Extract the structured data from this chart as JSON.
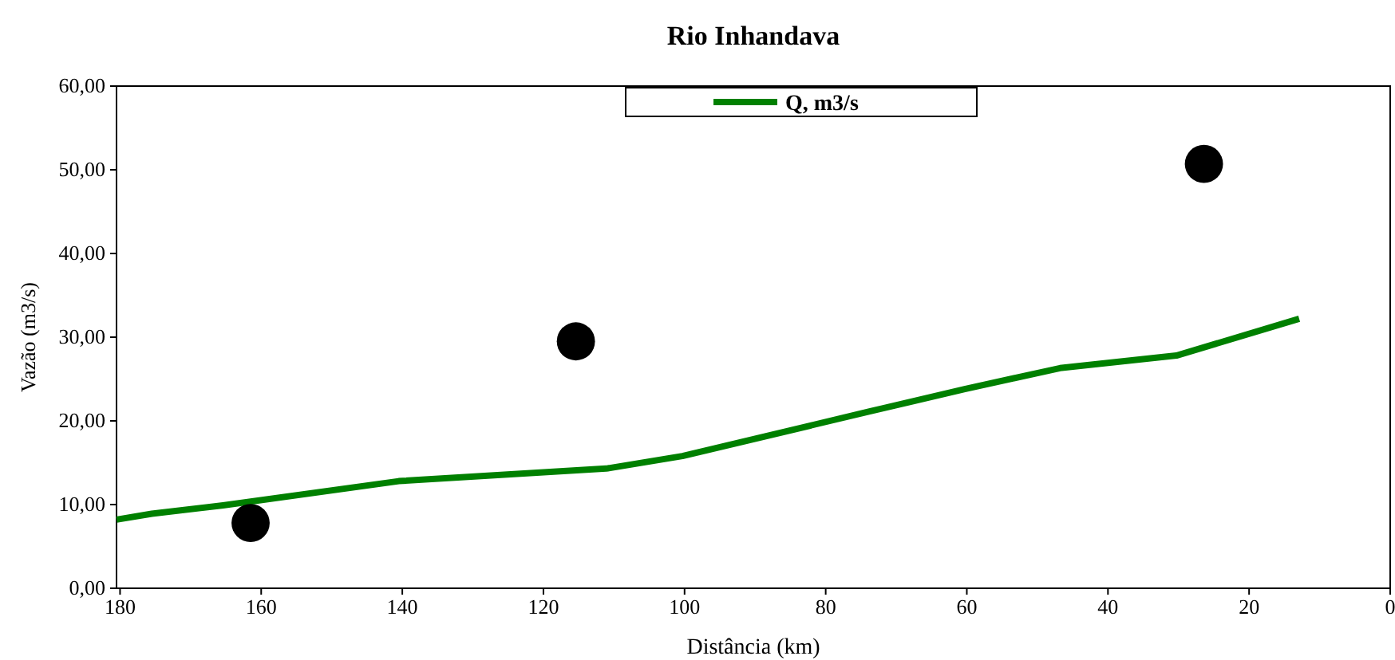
{
  "chart_data": {
    "type": "line",
    "title": "Rio Inhandava",
    "xlabel": "Distância (km)",
    "ylabel": "Vazão (m3/s)",
    "xlim": [
      180.5,
      0
    ],
    "xticks": [
      180,
      160,
      140,
      120,
      100,
      80,
      60,
      40,
      20,
      0
    ],
    "ylim": [
      0,
      60
    ],
    "yticks": [
      {
        "value": 0,
        "label": "0,00"
      },
      {
        "value": 10,
        "label": "10,00"
      },
      {
        "value": 20,
        "label": "20,00"
      },
      {
        "value": 30,
        "label": "30,00"
      },
      {
        "value": 40,
        "label": "40,00"
      },
      {
        "value": 50,
        "label": "50,00"
      },
      {
        "value": 60,
        "label": "60,00"
      }
    ],
    "grid": false,
    "legend": "top",
    "series": [
      {
        "name": "Q, m3/s",
        "type": "line",
        "color": "#008000",
        "marker": "none",
        "line_style": "solid",
        "x": [
          180.5,
          175.5,
          165.4,
          140.5,
          111.1,
          100.3,
          73.9,
          60.3,
          46.8,
          30.3,
          12.9
        ],
        "values": [
          8.2,
          8.9,
          9.9,
          12.8,
          14.3,
          15.8,
          21.1,
          23.8,
          26.3,
          27.8,
          32.2
        ]
      },
      {
        "type": "scatter",
        "color": "#000000",
        "marker": "circle",
        "x": [
          161.5,
          115.4,
          26.4
        ],
        "values": [
          7.8,
          29.5,
          50.7
        ]
      }
    ]
  }
}
